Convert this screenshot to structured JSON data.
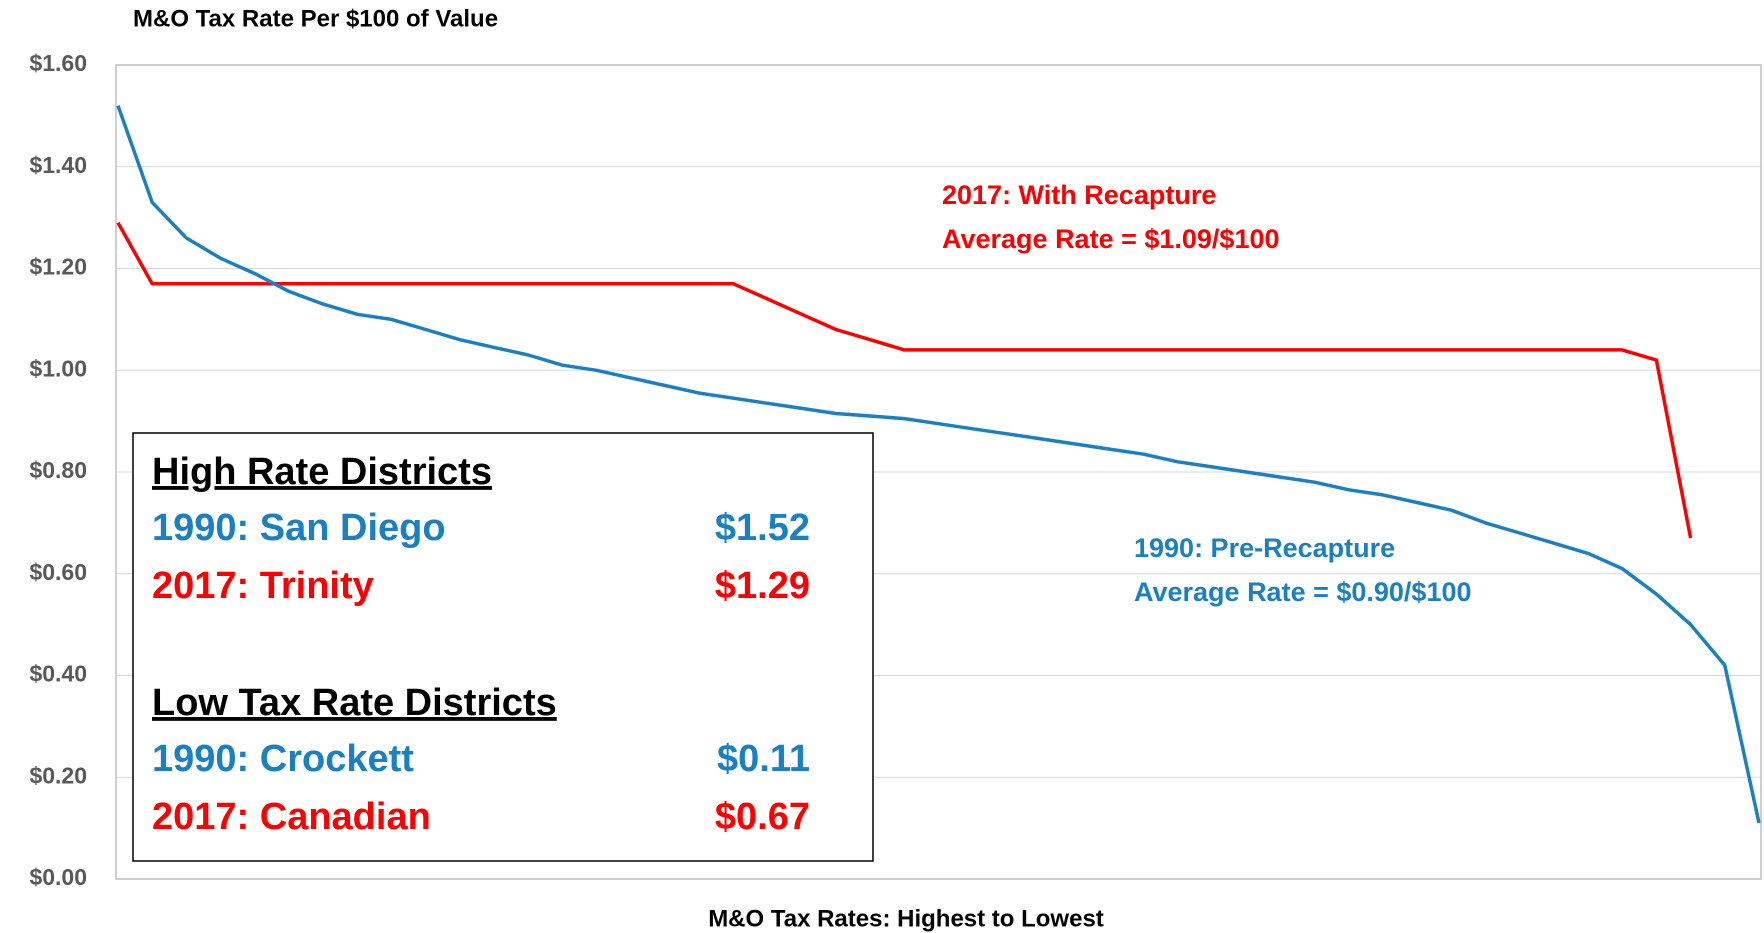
{
  "chart_data": {
    "type": "line",
    "title": "M&O Tax Rate Per $100 of Value",
    "x_label": "M&O Tax Rates: Highest to Lowest",
    "categories": [
      null,
      null,
      null,
      null,
      null,
      null,
      null,
      null,
      null,
      null,
      null,
      null,
      null,
      null,
      null,
      null,
      null,
      null,
      null,
      null,
      null,
      null,
      null,
      null,
      null,
      null,
      null,
      null,
      null,
      null,
      null,
      null,
      null,
      null,
      null,
      null,
      null,
      null,
      null,
      null,
      null,
      null,
      null,
      null,
      null,
      null,
      null,
      null,
      null
    ],
    "series": [
      {
        "name": "2017: With Recapture",
        "color": "#ff0000",
        "values": [
          1.29,
          1.17,
          1.17,
          1.17,
          1.17,
          1.17,
          1.17,
          1.17,
          1.17,
          1.17,
          1.17,
          1.17,
          1.17,
          1.17,
          1.17,
          1.17,
          1.17,
          1.17,
          1.17,
          1.14,
          1.11,
          1.08,
          1.06,
          1.04,
          1.04,
          1.04,
          1.04,
          1.04,
          1.04,
          1.04,
          1.04,
          1.04,
          1.04,
          1.04,
          1.04,
          1.04,
          1.04,
          1.04,
          1.04,
          1.04,
          1.04,
          1.04,
          1.04,
          1.04,
          1.04,
          1.02,
          0.67,
          null,
          null
        ]
      },
      {
        "name": "1990: Pre-Recapture",
        "color": "#1a80c4",
        "values": [
          1.52,
          1.33,
          1.26,
          1.22,
          1.19,
          1.155,
          1.13,
          1.11,
          1.1,
          1.08,
          1.06,
          1.045,
          1.03,
          1.01,
          1.0,
          0.985,
          0.97,
          0.955,
          0.945,
          0.935,
          0.925,
          0.915,
          0.91,
          0.905,
          0.895,
          0.885,
          0.875,
          0.865,
          0.855,
          0.845,
          0.835,
          0.82,
          0.81,
          0.8,
          0.79,
          0.78,
          0.765,
          0.755,
          0.74,
          0.725,
          0.7,
          0.68,
          0.66,
          0.64,
          0.61,
          0.56,
          0.5,
          0.42,
          0.11
        ]
      }
    ],
    "ylim": [
      0,
      1.6
    ],
    "yticks": [
      {
        "value": 0,
        "label": "$0.00"
      },
      {
        "value": 0.2,
        "label": "$0.20"
      },
      {
        "value": 0.4,
        "label": "$0.40"
      },
      {
        "value": 0.6,
        "label": "$0.60"
      },
      {
        "value": 0.8,
        "label": "$0.80"
      },
      {
        "value": 1.0,
        "label": "$1.00"
      },
      {
        "value": 1.2,
        "label": "$1.20"
      },
      {
        "value": 1.4,
        "label": "$1.40"
      },
      {
        "value": 1.6,
        "label": "$1.60"
      }
    ],
    "grid": true,
    "annotations": [
      {
        "lines": [
          "2017: With Recapture",
          "Average Rate = $1.09/$100"
        ],
        "color": "#ff0000"
      },
      {
        "lines": [
          "1990: Pre-Recapture",
          "Average Rate = $0.90/$100"
        ],
        "color": "#1a80c4"
      }
    ],
    "box": {
      "sections": [
        {
          "heading": "High Rate Districts",
          "rows": [
            {
              "label": "1990: San Diego",
              "value": "$1.52",
              "color": "#1a80c4"
            },
            {
              "label": "2017: Trinity",
              "value": "$1.29",
              "color": "#ff0000"
            }
          ]
        },
        {
          "heading": "Low Tax Rate Districts",
          "rows": [
            {
              "label": "1990: Crockett",
              "value": "$0.11",
              "color": "#1a80c4"
            },
            {
              "label": "2017: Canadian",
              "value": "$0.67",
              "color": "#ff0000"
            }
          ]
        }
      ]
    }
  }
}
